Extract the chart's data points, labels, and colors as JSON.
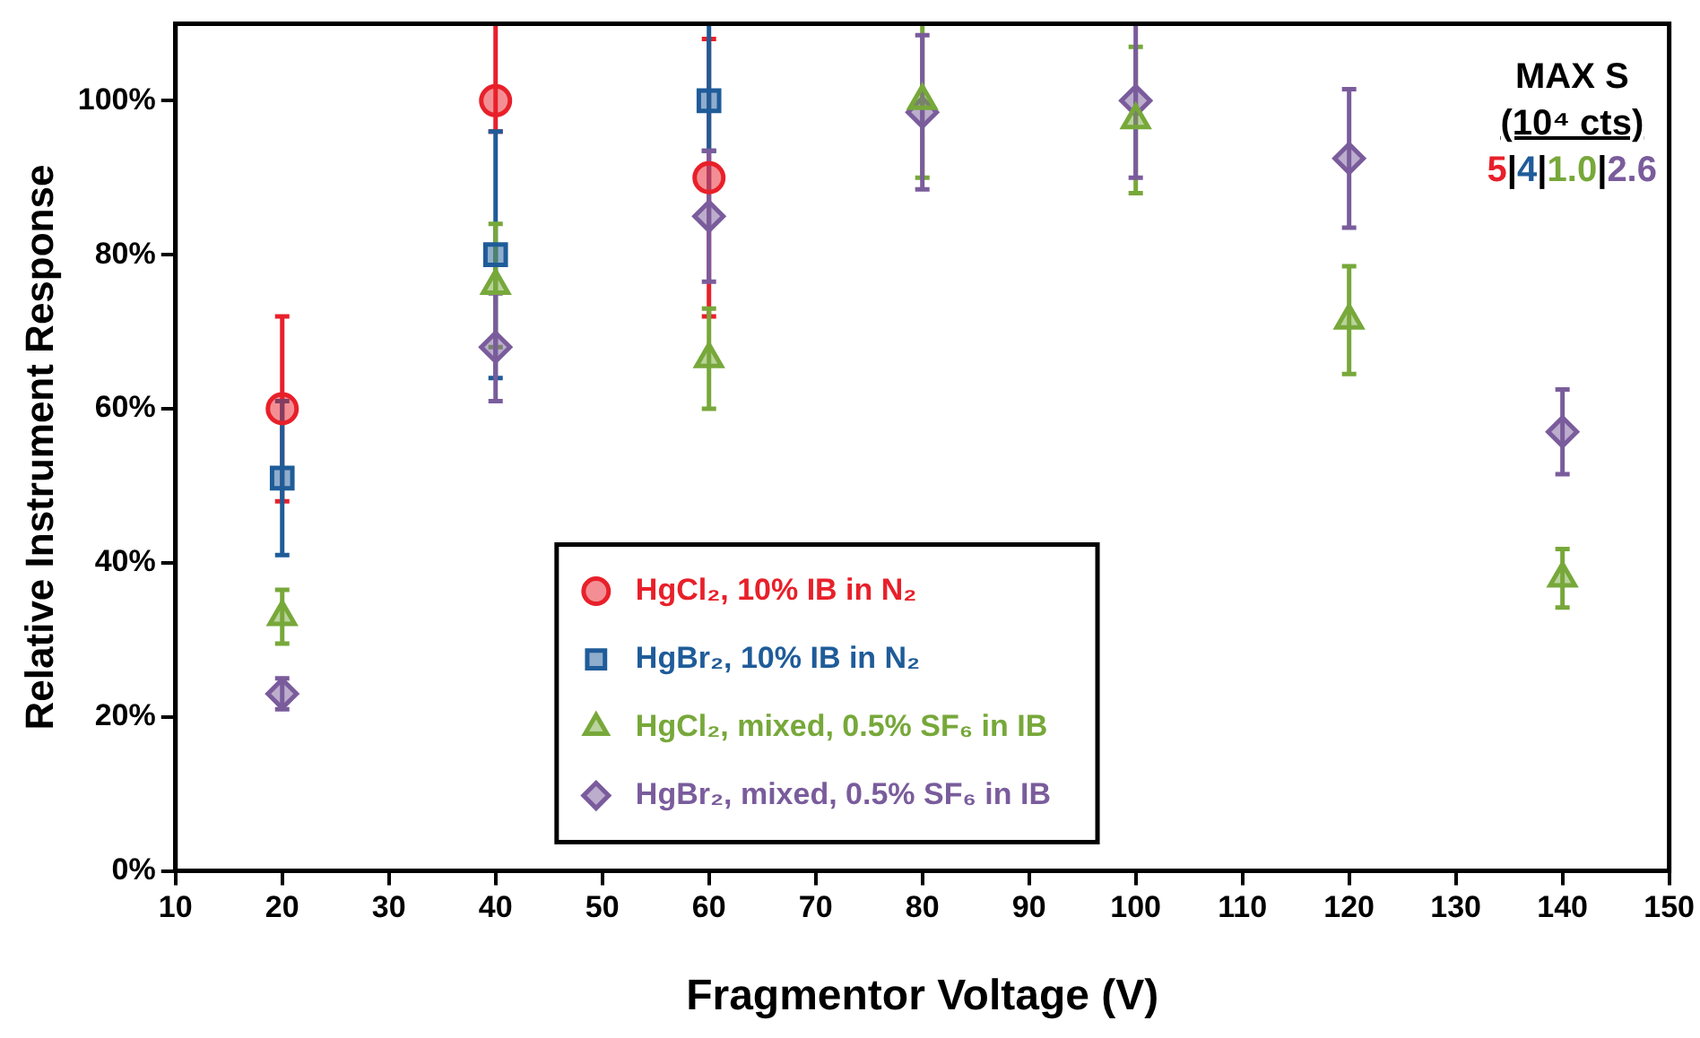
{
  "chart_data": {
    "type": "scatter",
    "xlabel": "Fragmentor Voltage (V)",
    "ylabel": "Relative Instrument Response",
    "xlim": [
      10,
      150
    ],
    "xticks": [
      10,
      20,
      30,
      40,
      50,
      60,
      70,
      80,
      90,
      100,
      110,
      120,
      130,
      140,
      150
    ],
    "ylim": [
      0,
      110
    ],
    "yticks": [
      {
        "value": 0,
        "label": "0%"
      },
      {
        "value": 20,
        "label": "20%"
      },
      {
        "value": 40,
        "label": "40%"
      },
      {
        "value": 60,
        "label": "60%"
      },
      {
        "value": 80,
        "label": "80%"
      },
      {
        "value": 100,
        "label": "100%"
      }
    ],
    "grid": false,
    "legend": "bottom",
    "annotations": [
      "MAX S",
      "(10⁴ cts)",
      "5|4|1.0|2.6"
    ],
    "series": [
      {
        "name": "HgCl₂, 10% IB in N₂",
        "color": "#e8202a",
        "marker": "circle",
        "x": [
          20,
          40,
          60
        ],
        "values": [
          60,
          100,
          90
        ],
        "errors": [
          12,
          [
            96,
            110
          ],
          18
        ]
      },
      {
        "name": "HgBr₂, 10% IB in N₂",
        "color": "#1f5c99",
        "marker": "square",
        "x": [
          20,
          40,
          60
        ],
        "values": [
          51,
          80,
          100
        ],
        "errors": [
          10,
          16,
          [
            93.5,
            110
          ]
        ]
      },
      {
        "name": "HgCl₂, mixed, 0.5% SF₆ in IB",
        "color": "#77a83a",
        "marker": "triangle",
        "x": [
          20,
          40,
          60,
          80,
          100,
          120,
          140
        ],
        "values": [
          33,
          76,
          66.5,
          100,
          97.5,
          71.5,
          38
        ],
        "errors": [
          3.5,
          8,
          6.5,
          10,
          9.5,
          7,
          3.8
        ]
      },
      {
        "name": "HgBr₂, mixed, 0.5% SF₆ in IB",
        "color": "#7a5c9c",
        "marker": "diamond",
        "x": [
          20,
          40,
          60,
          80,
          100,
          120,
          140
        ],
        "values": [
          23,
          68,
          85,
          98.5,
          100,
          92.5,
          57
        ],
        "errors": [
          2,
          7,
          8.5,
          10,
          10,
          9,
          5.5
        ]
      }
    ]
  }
}
